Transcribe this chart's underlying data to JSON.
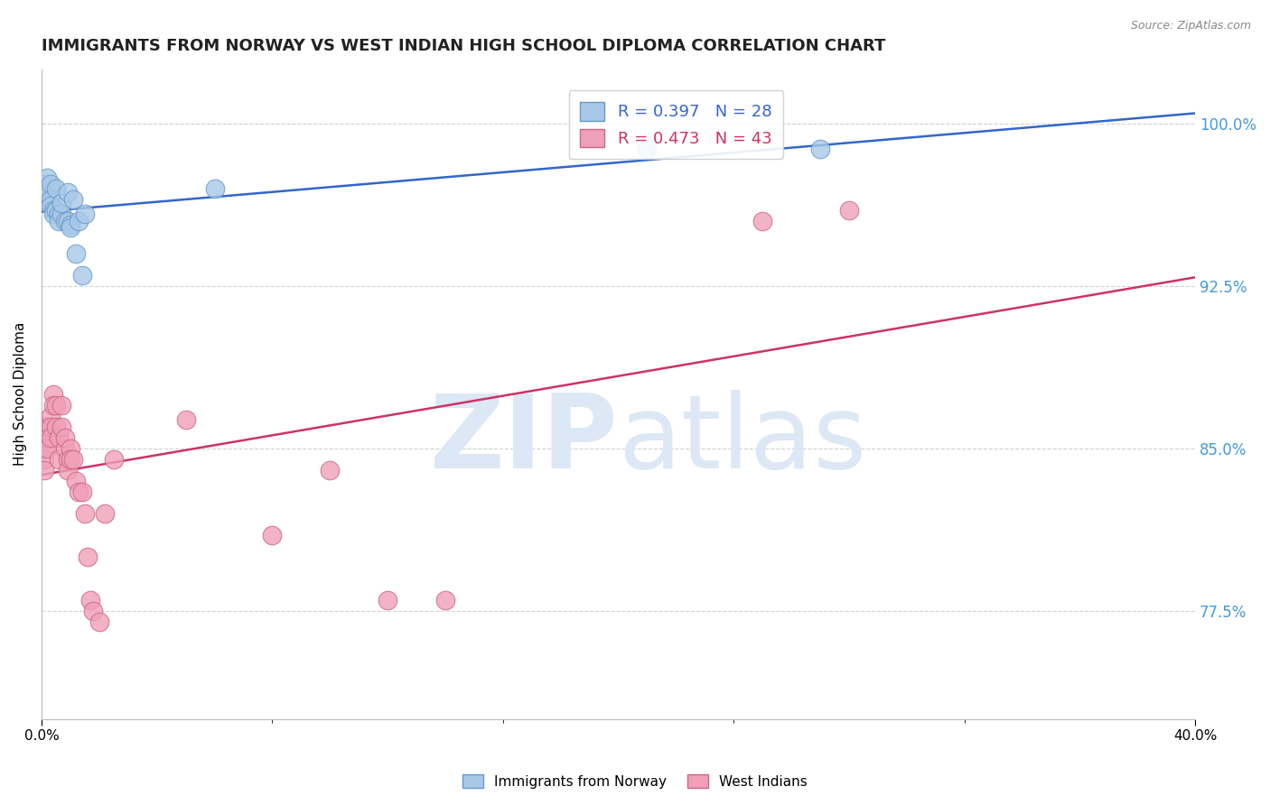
{
  "title": "IMMIGRANTS FROM NORWAY VS WEST INDIAN HIGH SCHOOL DIPLOMA CORRELATION CHART",
  "source": "Source: ZipAtlas.com",
  "ylabel": "High School Diploma",
  "ytick_labels": [
    "100.0%",
    "92.5%",
    "85.0%",
    "77.5%"
  ],
  "ytick_values": [
    1.0,
    0.925,
    0.85,
    0.775
  ],
  "xlim": [
    0.0,
    0.4
  ],
  "ylim": [
    0.725,
    1.025
  ],
  "norway_color": "#a8c8e8",
  "norway_edge": "#6699cc",
  "westindian_color": "#f0a0b8",
  "westindian_edge": "#cc6688",
  "norway_line_color": "#3366cc",
  "westindian_line_color": "#cc3366",
  "legend_norway_r": "R = 0.397",
  "legend_norway_n": "N = 28",
  "legend_wi_r": "R = 0.473",
  "legend_wi_n": "N = 43",
  "norway_x": [
    0.001,
    0.001,
    0.002,
    0.002,
    0.003,
    0.003,
    0.003,
    0.004,
    0.004,
    0.005,
    0.005,
    0.006,
    0.006,
    0.007,
    0.007,
    0.008,
    0.009,
    0.009,
    0.01,
    0.01,
    0.011,
    0.012,
    0.013,
    0.014,
    0.015,
    0.06,
    0.21,
    0.27
  ],
  "norway_y": [
    0.965,
    0.972,
    0.968,
    0.975,
    0.972,
    0.965,
    0.962,
    0.96,
    0.958,
    0.96,
    0.97,
    0.958,
    0.955,
    0.958,
    0.963,
    0.955,
    0.968,
    0.955,
    0.953,
    0.952,
    0.965,
    0.94,
    0.955,
    0.93,
    0.958,
    0.97,
    0.988,
    0.988
  ],
  "westindian_x": [
    0.001,
    0.001,
    0.001,
    0.001,
    0.001,
    0.002,
    0.002,
    0.002,
    0.003,
    0.003,
    0.003,
    0.004,
    0.004,
    0.005,
    0.005,
    0.006,
    0.006,
    0.007,
    0.007,
    0.008,
    0.008,
    0.009,
    0.009,
    0.01,
    0.01,
    0.011,
    0.012,
    0.013,
    0.014,
    0.015,
    0.016,
    0.017,
    0.018,
    0.02,
    0.022,
    0.025,
    0.05,
    0.08,
    0.1,
    0.12,
    0.14,
    0.25,
    0.28
  ],
  "westindian_y": [
    0.86,
    0.855,
    0.85,
    0.845,
    0.84,
    0.86,
    0.855,
    0.85,
    0.865,
    0.86,
    0.855,
    0.875,
    0.87,
    0.87,
    0.86,
    0.855,
    0.845,
    0.87,
    0.86,
    0.85,
    0.855,
    0.845,
    0.84,
    0.85,
    0.845,
    0.845,
    0.835,
    0.83,
    0.83,
    0.82,
    0.8,
    0.78,
    0.775,
    0.77,
    0.82,
    0.845,
    0.863,
    0.81,
    0.84,
    0.78,
    0.78,
    0.955,
    0.96
  ],
  "watermark_zip": "ZIP",
  "watermark_atlas": "atlas",
  "watermark_color": "#dce8f5",
  "grid_color": "#cccccc",
  "background_color": "#ffffff",
  "title_fontsize": 13,
  "axis_label_fontsize": 11,
  "tick_fontsize": 11,
  "legend_fontsize": 13,
  "right_tick_color": "#4499dd"
}
